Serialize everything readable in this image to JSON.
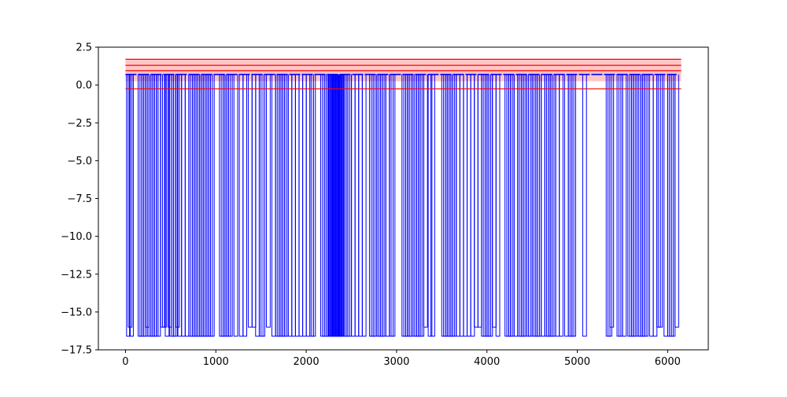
{
  "chart_data": {
    "type": "line",
    "title": "",
    "xlabel": "",
    "ylabel": "",
    "xlim": [
      -300,
      6450
    ],
    "ylim": [
      -17.5,
      2.5
    ],
    "x_ticks": [
      0,
      1000,
      2000,
      3000,
      4000,
      5000,
      6000
    ],
    "y_ticks": [
      2.5,
      0.0,
      -2.5,
      -5.0,
      -7.5,
      -10.0,
      -12.5,
      -15.0,
      -17.5
    ],
    "x_tick_labels": [
      "0",
      "1000",
      "2000",
      "3000",
      "4000",
      "5000",
      "6000"
    ],
    "y_tick_labels": [
      "2.5",
      "0.0",
      "−2.5",
      "−5.0",
      "−7.5",
      "−10.0",
      "−12.5",
      "−15.0",
      "−17.5"
    ],
    "grid": false,
    "series": [
      {
        "color": "#0000ff",
        "baseline": 0.7,
        "x_range": [
          0,
          6100
        ],
        "dips": [
          {
            "x": 12,
            "y": -16.6
          },
          {
            "x": 30,
            "y": -16.0
          },
          {
            "x": 45,
            "y": -16.6
          },
          {
            "x": 140,
            "y": -16.6
          },
          {
            "x": 160,
            "y": -16.6
          },
          {
            "x": 180,
            "y": -16.6
          },
          {
            "x": 200,
            "y": -16.6
          },
          {
            "x": 220,
            "y": -16.0
          },
          {
            "x": 240,
            "y": -16.6
          },
          {
            "x": 260,
            "y": -16.6
          },
          {
            "x": 280,
            "y": -16.6
          },
          {
            "x": 300,
            "y": -16.6
          },
          {
            "x": 320,
            "y": -16.6
          },
          {
            "x": 345,
            "y": -16.6
          },
          {
            "x": 390,
            "y": -16.0
          },
          {
            "x": 410,
            "y": -16.0
          },
          {
            "x": 440,
            "y": -16.6
          },
          {
            "x": 470,
            "y": -16.0
          },
          {
            "x": 490,
            "y": -16.6
          },
          {
            "x": 510,
            "y": -16.6
          },
          {
            "x": 530,
            "y": -16.6
          },
          {
            "x": 555,
            "y": -16.0
          },
          {
            "x": 580,
            "y": -16.6
          },
          {
            "x": 620,
            "y": -16.6
          },
          {
            "x": 660,
            "y": -16.6
          },
          {
            "x": 700,
            "y": -16.6
          },
          {
            "x": 720,
            "y": -16.6
          },
          {
            "x": 740,
            "y": -16.6
          },
          {
            "x": 760,
            "y": -16.6
          },
          {
            "x": 780,
            "y": -16.6
          },
          {
            "x": 800,
            "y": -16.6
          },
          {
            "x": 820,
            "y": -16.6
          },
          {
            "x": 840,
            "y": -16.6
          },
          {
            "x": 860,
            "y": -16.6
          },
          {
            "x": 880,
            "y": -16.6
          },
          {
            "x": 900,
            "y": -16.6
          },
          {
            "x": 920,
            "y": -16.6
          },
          {
            "x": 940,
            "y": -16.6
          },
          {
            "x": 1040,
            "y": -16.6
          },
          {
            "x": 1060,
            "y": -16.6
          },
          {
            "x": 1080,
            "y": -16.6
          },
          {
            "x": 1100,
            "y": -16.6
          },
          {
            "x": 1120,
            "y": -16.6
          },
          {
            "x": 1140,
            "y": -16.6
          },
          {
            "x": 1200,
            "y": -16.6
          },
          {
            "x": 1260,
            "y": -16.6
          },
          {
            "x": 1300,
            "y": -16.6
          },
          {
            "x": 1360,
            "y": -16.0
          },
          {
            "x": 1400,
            "y": -16.0
          },
          {
            "x": 1440,
            "y": -16.6
          },
          {
            "x": 1480,
            "y": -16.6
          },
          {
            "x": 1500,
            "y": -16.6
          },
          {
            "x": 1560,
            "y": -16.0
          },
          {
            "x": 1620,
            "y": -16.6
          },
          {
            "x": 1660,
            "y": -16.6
          },
          {
            "x": 1680,
            "y": -16.6
          },
          {
            "x": 1700,
            "y": -16.6
          },
          {
            "x": 1720,
            "y": -16.6
          },
          {
            "x": 1740,
            "y": -16.6
          },
          {
            "x": 1760,
            "y": -16.6
          },
          {
            "x": 1800,
            "y": -16.6
          },
          {
            "x": 1840,
            "y": -16.6
          },
          {
            "x": 1880,
            "y": -16.6
          },
          {
            "x": 1920,
            "y": -16.6
          },
          {
            "x": 1960,
            "y": -16.6
          },
          {
            "x": 2000,
            "y": -16.6
          },
          {
            "x": 2040,
            "y": -16.6
          },
          {
            "x": 2060,
            "y": -16.6
          },
          {
            "x": 2160,
            "y": -16.6
          },
          {
            "x": 2180,
            "y": -16.6
          },
          {
            "x": 2200,
            "y": -16.6
          },
          {
            "x": 2220,
            "y": -16.6
          },
          {
            "x": 2240,
            "y": -16.6
          },
          {
            "x": 2250,
            "y": -16.6
          },
          {
            "x": 2260,
            "y": -16.6
          },
          {
            "x": 2270,
            "y": -16.6
          },
          {
            "x": 2280,
            "y": -16.6
          },
          {
            "x": 2290,
            "y": -16.6
          },
          {
            "x": 2300,
            "y": -16.6
          },
          {
            "x": 2310,
            "y": -16.6
          },
          {
            "x": 2320,
            "y": -16.6
          },
          {
            "x": 2330,
            "y": -16.6
          },
          {
            "x": 2340,
            "y": -16.6
          },
          {
            "x": 2350,
            "y": -16.6
          },
          {
            "x": 2360,
            "y": -16.6
          },
          {
            "x": 2370,
            "y": -16.6
          },
          {
            "x": 2380,
            "y": -16.6
          },
          {
            "x": 2400,
            "y": -16.6
          },
          {
            "x": 2420,
            "y": -16.6
          },
          {
            "x": 2440,
            "y": -16.6
          },
          {
            "x": 2460,
            "y": -16.6
          },
          {
            "x": 2500,
            "y": -16.6
          },
          {
            "x": 2540,
            "y": -16.6
          },
          {
            "x": 2580,
            "y": -16.6
          },
          {
            "x": 2620,
            "y": -16.6
          },
          {
            "x": 2700,
            "y": -16.6
          },
          {
            "x": 2720,
            "y": -16.6
          },
          {
            "x": 2740,
            "y": -16.6
          },
          {
            "x": 2780,
            "y": -16.6
          },
          {
            "x": 2800,
            "y": -16.6
          },
          {
            "x": 2820,
            "y": -16.6
          },
          {
            "x": 2840,
            "y": -16.6
          },
          {
            "x": 2880,
            "y": -16.6
          },
          {
            "x": 2920,
            "y": -16.6
          },
          {
            "x": 2940,
            "y": -16.6
          },
          {
            "x": 3060,
            "y": -16.6
          },
          {
            "x": 3080,
            "y": -16.6
          },
          {
            "x": 3100,
            "y": -16.6
          },
          {
            "x": 3120,
            "y": -16.6
          },
          {
            "x": 3140,
            "y": -16.6
          },
          {
            "x": 3180,
            "y": -16.6
          },
          {
            "x": 3200,
            "y": -16.6
          },
          {
            "x": 3220,
            "y": -16.6
          },
          {
            "x": 3240,
            "y": -16.6
          },
          {
            "x": 3260,
            "y": -16.6
          },
          {
            "x": 3300,
            "y": -16.0
          },
          {
            "x": 3350,
            "y": -16.6
          },
          {
            "x": 3380,
            "y": -16.6
          },
          {
            "x": 3500,
            "y": -16.6
          },
          {
            "x": 3520,
            "y": -16.6
          },
          {
            "x": 3540,
            "y": -16.6
          },
          {
            "x": 3560,
            "y": -16.6
          },
          {
            "x": 3580,
            "y": -16.6
          },
          {
            "x": 3600,
            "y": -16.6
          },
          {
            "x": 3620,
            "y": -16.6
          },
          {
            "x": 3660,
            "y": -16.6
          },
          {
            "x": 3700,
            "y": -16.6
          },
          {
            "x": 3740,
            "y": -16.6
          },
          {
            "x": 3780,
            "y": -16.6
          },
          {
            "x": 3820,
            "y": -16.6
          },
          {
            "x": 3860,
            "y": -16.0
          },
          {
            "x": 3900,
            "y": -16.0
          },
          {
            "x": 3940,
            "y": -16.6
          },
          {
            "x": 3960,
            "y": -16.6
          },
          {
            "x": 3980,
            "y": -16.6
          },
          {
            "x": 4000,
            "y": -16.6
          },
          {
            "x": 4020,
            "y": -16.6
          },
          {
            "x": 4060,
            "y": -16.0
          },
          {
            "x": 4100,
            "y": -16.6
          },
          {
            "x": 4200,
            "y": -16.6
          },
          {
            "x": 4220,
            "y": -16.6
          },
          {
            "x": 4240,
            "y": -16.6
          },
          {
            "x": 4260,
            "y": -16.6
          },
          {
            "x": 4300,
            "y": -16.6
          },
          {
            "x": 4340,
            "y": -16.6
          },
          {
            "x": 4360,
            "y": -16.6
          },
          {
            "x": 4380,
            "y": -16.6
          },
          {
            "x": 4400,
            "y": -16.6
          },
          {
            "x": 4440,
            "y": -16.6
          },
          {
            "x": 4460,
            "y": -16.6
          },
          {
            "x": 4500,
            "y": -16.6
          },
          {
            "x": 4520,
            "y": -16.6
          },
          {
            "x": 4540,
            "y": -16.6
          },
          {
            "x": 4560,
            "y": -16.6
          },
          {
            "x": 4600,
            "y": -16.6
          },
          {
            "x": 4640,
            "y": -16.6
          },
          {
            "x": 4660,
            "y": -16.6
          },
          {
            "x": 4680,
            "y": -16.6
          },
          {
            "x": 4700,
            "y": -16.6
          },
          {
            "x": 4720,
            "y": -16.6
          },
          {
            "x": 4760,
            "y": -16.6
          },
          {
            "x": 4800,
            "y": -16.6
          },
          {
            "x": 4860,
            "y": -16.6
          },
          {
            "x": 4900,
            "y": -16.6
          },
          {
            "x": 4920,
            "y": -16.6
          },
          {
            "x": 4940,
            "y": -16.6
          },
          {
            "x": 5060,
            "y": -16.6
          },
          {
            "x": 5320,
            "y": -16.6
          },
          {
            "x": 5340,
            "y": -16.6
          },
          {
            "x": 5360,
            "y": -16.0
          },
          {
            "x": 5440,
            "y": -16.6
          },
          {
            "x": 5460,
            "y": -16.6
          },
          {
            "x": 5500,
            "y": -16.6
          },
          {
            "x": 5560,
            "y": -16.6
          },
          {
            "x": 5580,
            "y": -16.6
          },
          {
            "x": 5600,
            "y": -16.6
          },
          {
            "x": 5620,
            "y": -16.6
          },
          {
            "x": 5660,
            "y": -16.6
          },
          {
            "x": 5680,
            "y": -16.6
          },
          {
            "x": 5700,
            "y": -16.6
          },
          {
            "x": 5720,
            "y": -16.6
          },
          {
            "x": 5740,
            "y": -16.6
          },
          {
            "x": 5800,
            "y": -16.6
          },
          {
            "x": 5840,
            "y": -16.6
          },
          {
            "x": 5880,
            "y": -16.0
          },
          {
            "x": 5900,
            "y": -16.0
          },
          {
            "x": 5960,
            "y": -16.6
          },
          {
            "x": 6000,
            "y": -16.6
          },
          {
            "x": 6020,
            "y": -16.6
          },
          {
            "x": 6040,
            "y": -16.6
          },
          {
            "x": 6080,
            "y": -16.0
          }
        ]
      }
    ],
    "reference_lines": [
      {
        "y": 1.7,
        "color": "#ff0000"
      },
      {
        "y": 1.3,
        "color": "#ff0000"
      },
      {
        "y": 0.95,
        "color": "#ff0000"
      },
      {
        "y": -0.25,
        "color": "#ff0000"
      }
    ],
    "reference_band": {
      "y0": 0.25,
      "y1": 1.7,
      "x_range": [
        0,
        6150
      ],
      "color": "#ffb3b3"
    }
  }
}
